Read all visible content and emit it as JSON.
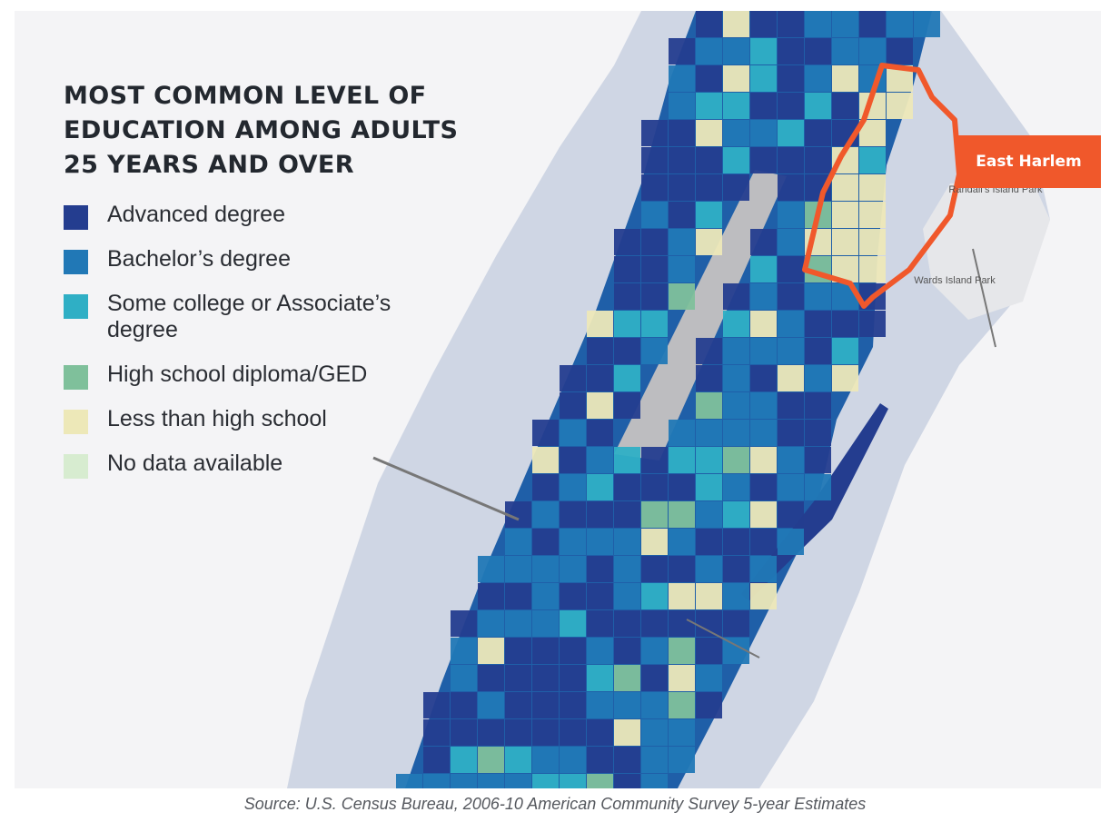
{
  "map": {
    "title_lines": [
      "MOST COMMON LEVEL OF",
      "EDUCATION AMONG ADULTS",
      "25 YEARS AND OVER"
    ],
    "legend": [
      {
        "label": "Advanced degree",
        "color": "#243d8f"
      },
      {
        "label": "Bachelor’s degree",
        "color": "#2178b6"
      },
      {
        "label": "Some college or Associate’s degree",
        "color": "#2fafc5"
      },
      {
        "label": "High school diploma/GED",
        "color": "#7fc09b"
      },
      {
        "label": "Less than high school",
        "color": "#ede8b8"
      },
      {
        "label": "No data available",
        "color": "#d7ecd0"
      }
    ],
    "callout": {
      "label": "East Harlem",
      "color": "#f0582b"
    },
    "place_labels": [
      {
        "text": "Randall’s Island Park"
      },
      {
        "text": "Wards Island Park"
      }
    ],
    "colors": {
      "water": "#cfd6e4",
      "land": "#f4f4f6",
      "park": "#bdbdc0",
      "highlight_outline": "#f0582b"
    }
  },
  "source": "Source: U.S. Census Bureau, 2006-10 American Community Survey 5-year Estimates"
}
